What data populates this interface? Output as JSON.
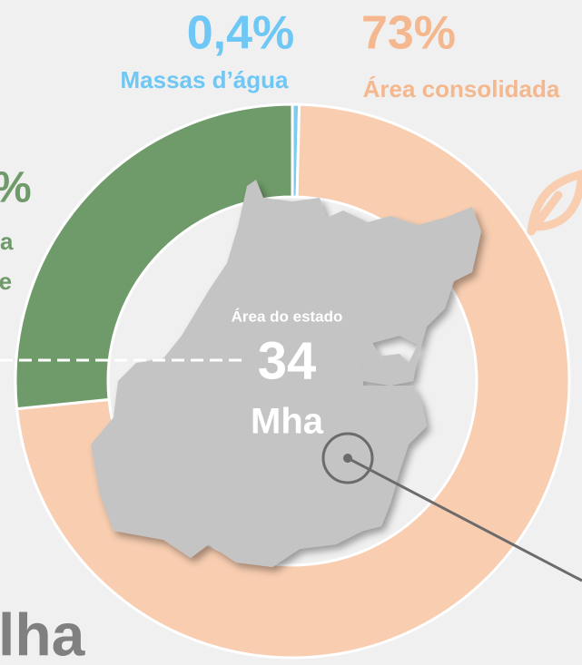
{
  "chart_data": {
    "type": "donut",
    "categories": [
      "Massas d’água",
      "Área consolidada",
      null
    ],
    "values": [
      0.4,
      73,
      26.6
    ],
    "value_labels": [
      "0,4%",
      "73%",
      null
    ],
    "colors": [
      "#7ecbf0",
      "#f8cdb0",
      "#6f9a6a"
    ],
    "center_label": "Área do estado",
    "center_value": "34",
    "center_unit": "Mha",
    "fragments": [
      "%",
      "a",
      "te",
      "lha"
    ]
  }
}
